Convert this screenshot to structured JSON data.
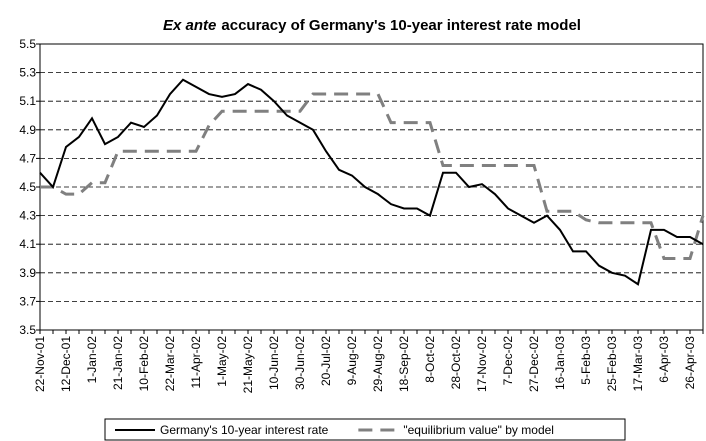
{
  "chart_data": {
    "type": "line",
    "title": [
      "Ex ante",
      "accuracy of Germany's 10-year interest rate model"
    ],
    "categories": [
      "22-Nov-01",
      null,
      "12-Dec-01",
      null,
      "1-Jan-02",
      null,
      "21-Jan-02",
      null,
      "10-Feb-02",
      null,
      "22-Mar-02",
      null,
      "11-Apr-02",
      null,
      "1-May-02",
      null,
      "21-May-02",
      null,
      "10-Jun-02",
      null,
      "30-Jun-02",
      null,
      "20-Jul-02",
      null,
      "9-Aug-02",
      null,
      "29-Aug-02",
      null,
      "18-Sep-02",
      null,
      "8-Oct-02",
      null,
      "28-Oct-02",
      null,
      "17-Nov-02",
      null,
      "7-Dec-02",
      null,
      "27-Dec-02",
      null,
      "16-Jan-03",
      null,
      "5-Feb-03",
      null,
      "25-Feb-03",
      null,
      "17-Mar-03",
      null,
      "6-Apr-03",
      null,
      "26-Apr-03",
      null
    ],
    "series": [
      {
        "name": "Germany's 10-year interest rate",
        "color": "#000000",
        "dash": "solid",
        "values": [
          4.6,
          4.5,
          4.78,
          4.85,
          4.98,
          4.8,
          4.85,
          4.95,
          4.92,
          5.0,
          5.15,
          5.25,
          5.2,
          5.15,
          5.13,
          5.15,
          5.22,
          5.18,
          5.1,
          5.0,
          4.95,
          4.9,
          4.75,
          4.62,
          4.58,
          4.5,
          4.45,
          4.38,
          4.35,
          4.35,
          4.3,
          4.6,
          4.6,
          4.5,
          4.52,
          4.45,
          4.35,
          4.3,
          4.25,
          4.3,
          4.2,
          4.05,
          4.05,
          3.95,
          3.9,
          3.88,
          3.82,
          4.2,
          4.2,
          4.15,
          4.15,
          4.1
        ]
      },
      {
        "name": "\"equilibrium value\" by model",
        "color": "#808080",
        "dash": "dashed",
        "values": [
          4.5,
          4.5,
          4.45,
          4.45,
          4.53,
          4.53,
          4.75,
          4.75,
          4.75,
          4.75,
          4.75,
          4.75,
          4.75,
          4.93,
          5.03,
          5.03,
          5.03,
          5.03,
          5.03,
          5.03,
          5.03,
          5.15,
          5.15,
          5.15,
          5.15,
          5.15,
          5.15,
          4.95,
          4.95,
          4.95,
          4.95,
          4.65,
          4.65,
          4.65,
          4.65,
          4.65,
          4.65,
          4.65,
          4.65,
          4.33,
          4.33,
          4.33,
          4.27,
          4.25,
          4.25,
          4.25,
          4.25,
          4.25,
          4.0,
          4.0,
          4.0,
          4.3
        ]
      }
    ],
    "ylim": [
      3.5,
      5.5
    ],
    "yticks": [
      3.5,
      3.7,
      3.9,
      4.1,
      4.3,
      4.5,
      4.7,
      4.9,
      5.1,
      5.3,
      5.5
    ],
    "grid": true,
    "legend": "bottom"
  }
}
